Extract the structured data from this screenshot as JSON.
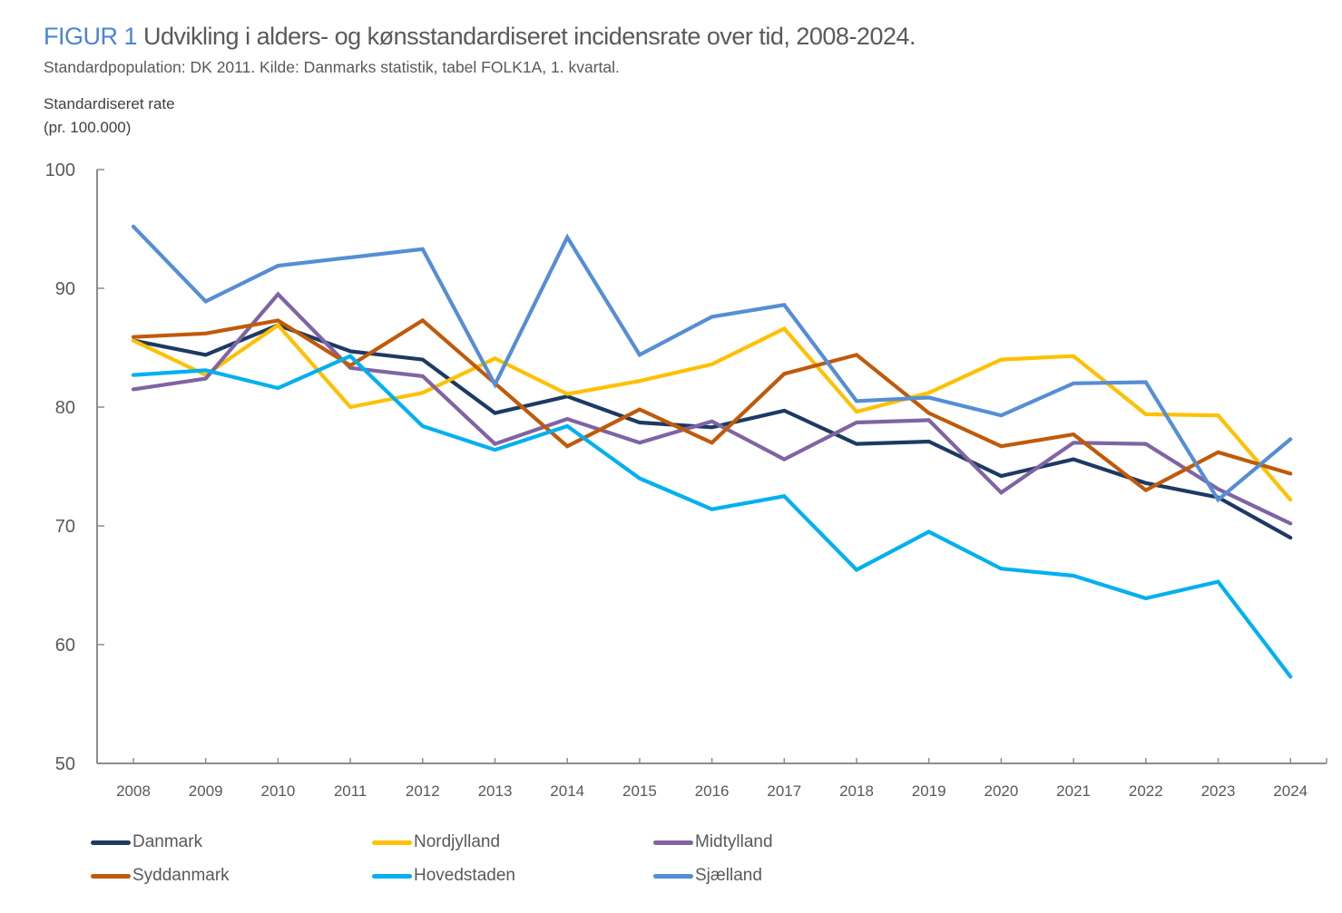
{
  "header": {
    "figure_label": "FIGUR 1",
    "title": "Udvikling i alders- og kønsstandardiseret incidensrate over tid, 2008-2024.",
    "subtitle": "Standardpopulation: DK 2011. Kilde: Danmarks statistik, tabel FOLK1A, 1. kvartal.",
    "ylabel_line1": "Standardiseret rate",
    "ylabel_line2": "(pr. 100.000)"
  },
  "chart_data": {
    "type": "line",
    "title": "FIGUR 1 Udvikling i alders- og kønsstandardiseret incidensrate over tid, 2008-2024.",
    "subtitle": "Standardpopulation: DK 2011. Kilde: Danmarks statistik, tabel FOLK1A, 1. kvartal.",
    "xlabel": "",
    "ylabel": "Standardiseret rate (pr. 100.000)",
    "x": [
      "2008",
      "2009",
      "2010",
      "2011",
      "2012",
      "2013",
      "2014",
      "2015",
      "2016",
      "2017",
      "2018",
      "2019",
      "2020",
      "2021",
      "2022",
      "2023",
      "2024"
    ],
    "ylim": [
      50,
      100
    ],
    "yticks": [
      50,
      60,
      70,
      80,
      90,
      100
    ],
    "grid": false,
    "legend_position": "bottom",
    "series": [
      {
        "name": "Danmark",
        "color": "#1c3a63",
        "values": [
          85.6,
          84.4,
          86.9,
          84.7,
          84.0,
          79.5,
          80.9,
          78.7,
          78.3,
          79.7,
          76.9,
          77.1,
          74.2,
          75.6,
          73.6,
          72.4,
          69.0
        ]
      },
      {
        "name": "Nordjylland",
        "color": "#ffc000",
        "values": [
          85.6,
          82.7,
          86.9,
          80.0,
          81.2,
          84.1,
          81.1,
          82.2,
          83.6,
          86.6,
          79.6,
          81.2,
          84.0,
          84.3,
          79.4,
          79.3,
          72.2
        ]
      },
      {
        "name": "Midtylland",
        "color": "#8064a2",
        "values": [
          81.5,
          82.4,
          89.5,
          83.3,
          82.6,
          76.9,
          79.0,
          77.0,
          78.8,
          75.6,
          78.7,
          78.9,
          72.8,
          77.0,
          76.9,
          73.1,
          70.2
        ]
      },
      {
        "name": "Syddanmark",
        "color": "#c05a0a",
        "values": [
          85.9,
          86.2,
          87.3,
          83.5,
          87.3,
          82.0,
          76.7,
          79.8,
          77.0,
          82.8,
          84.4,
          79.5,
          76.7,
          77.7,
          73.0,
          76.2,
          74.4
        ]
      },
      {
        "name": "Hovedstaden",
        "color": "#00b0f0",
        "values": [
          82.7,
          83.1,
          81.6,
          84.3,
          78.4,
          76.4,
          78.4,
          74.0,
          71.4,
          72.5,
          66.3,
          69.5,
          66.4,
          65.8,
          63.9,
          65.3,
          57.3
        ]
      },
      {
        "name": "Sjælland",
        "color": "#558ed5",
        "values": [
          95.2,
          88.9,
          91.9,
          92.6,
          93.3,
          81.9,
          94.3,
          84.4,
          87.6,
          88.6,
          80.5,
          80.8,
          79.3,
          82.0,
          82.1,
          72.2,
          77.3
        ]
      }
    ]
  },
  "legend": {
    "items": [
      {
        "name": "Danmark",
        "color": "#1c3a63"
      },
      {
        "name": "Nordjylland",
        "color": "#ffc000"
      },
      {
        "name": "Midtylland",
        "color": "#8064a2"
      },
      {
        "name": "Syddanmark",
        "color": "#c05a0a"
      },
      {
        "name": "Hovedstaden",
        "color": "#00b0f0"
      },
      {
        "name": "Sjælland",
        "color": "#558ed5"
      }
    ]
  }
}
